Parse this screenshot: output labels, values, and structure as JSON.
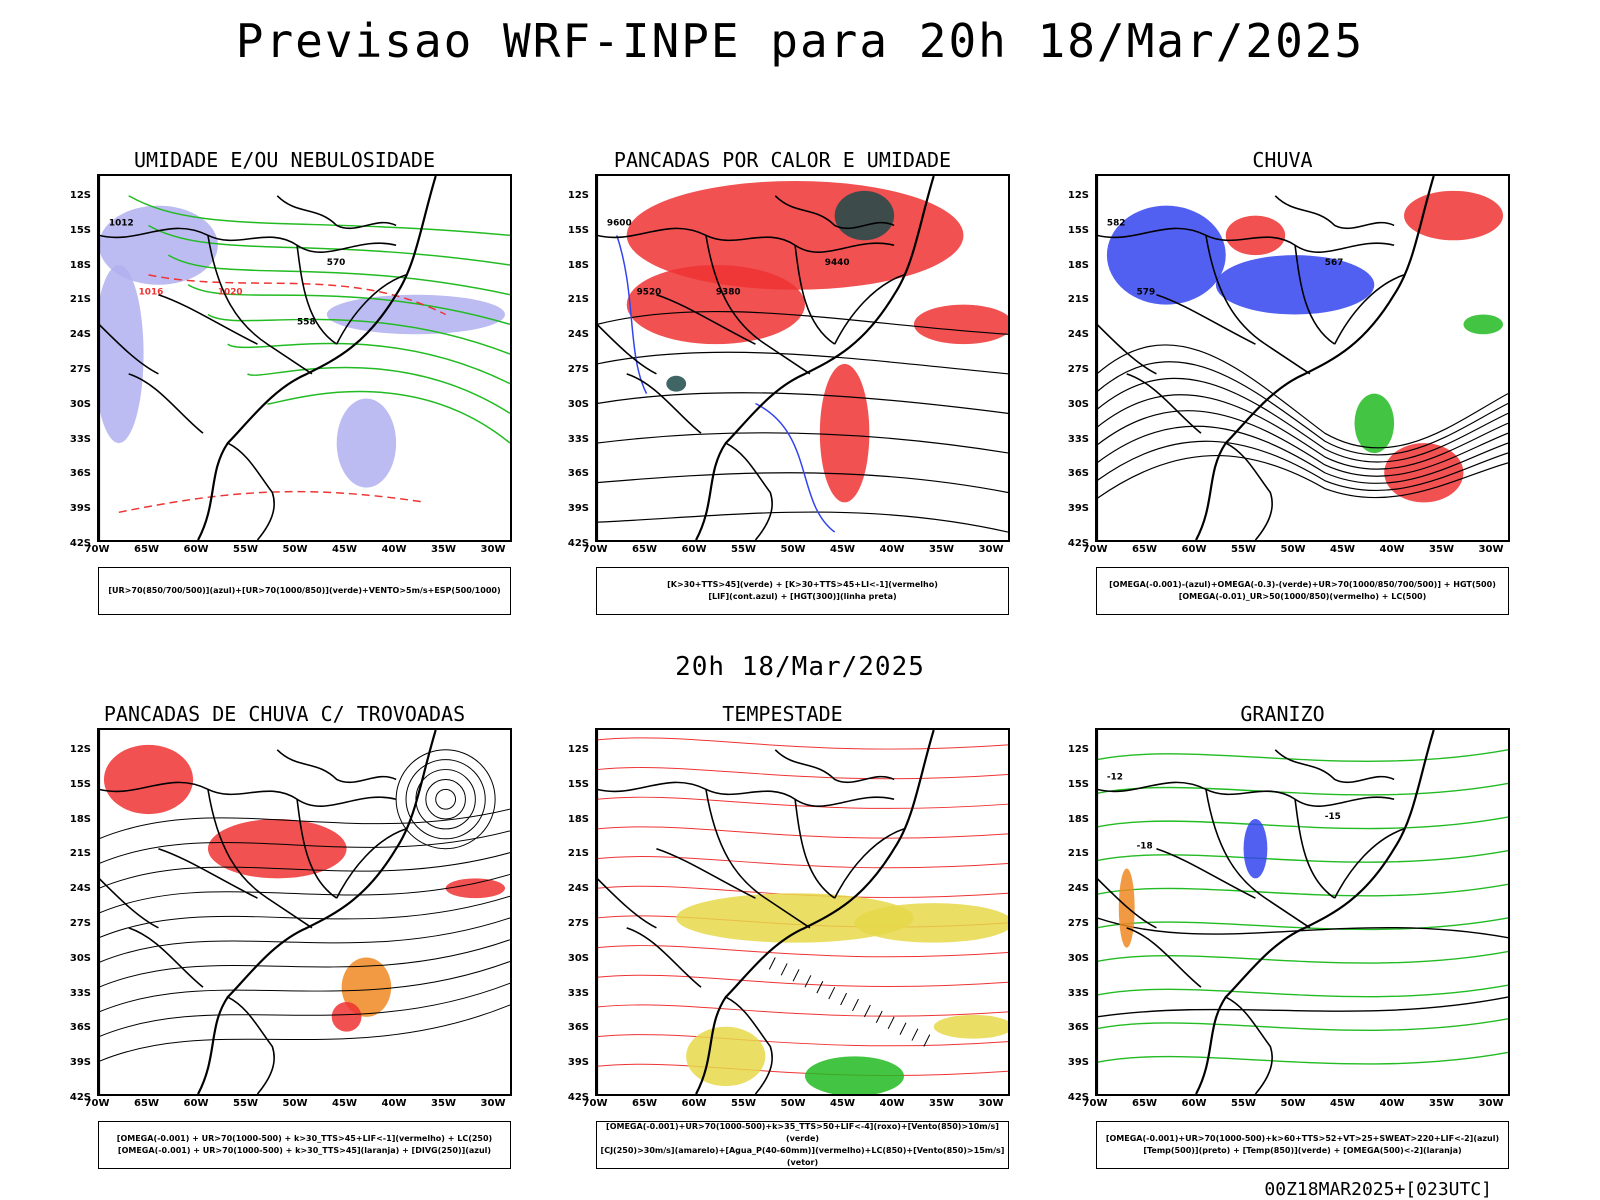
{
  "header": {
    "title": "Previsao WRF-INPE  para 20h 18/Mar/2025",
    "mid_date": "20h 18/Mar/2025"
  },
  "footer": {
    "run": "00Z18MAR2025+[023UTC]"
  },
  "axes": {
    "lat_labels": [
      "12S",
      "15S",
      "18S",
      "21S",
      "24S",
      "27S",
      "30S",
      "33S",
      "36S",
      "39S",
      "42S"
    ],
    "lon_labels": [
      "70W",
      "65W",
      "60W",
      "55W",
      "50W",
      "45W",
      "40W",
      "35W",
      "30W"
    ]
  },
  "colors": {
    "blue": "#3344ee",
    "green": "#22bb22",
    "red": "#ee3333",
    "lavender": "#b0b0f0",
    "darkteal": "#1f4a4a",
    "orange": "#ee8822",
    "yellow": "#e6d84a",
    "purple": "#8a2be2"
  },
  "panels": [
    {
      "title": "UMIDADE E/OU NEBULOSIDADE",
      "legend": [
        "[UR>70(850/700/500)](azul)+[UR>70(1000/850)](verde)+VENTO>5m/s+ESP(500/1000)"
      ],
      "annotations": [
        "1012",
        "1016",
        "570",
        "1020",
        "558"
      ]
    },
    {
      "title": "PANCADAS POR CALOR E UMIDADE",
      "legend": [
        "[K>30+TTS>45](verde) + [K>30+TTS>45+LI<-1](vermelho)",
        "[LIF](cont.azul) + [HGT(300)](linha preta)"
      ],
      "annotations": [
        "9600",
        "9520",
        "9440",
        "9380"
      ]
    },
    {
      "title": "CHUVA",
      "legend": [
        "[OMEGA(-0.001)-(azul)+OMEGA(-0.3)-(verde)+UR>70(1000/850/700/500)] + HGT(500)",
        "[OMEGA(-0.01)_UR>50(1000/850)(vermelho) + LC(500)"
      ],
      "annotations": [
        "582",
        "579",
        "567"
      ]
    },
    {
      "title": "PANCADAS DE CHUVA C/ TROVOADAS",
      "legend": [
        "[OMEGA(-0.001) + UR>70(1000-500) + k>30_TTS>45+LIF<-1](vermelho) + LC(250)",
        "[OMEGA(-0.001) + UR>70(1000-500) + k>30_TTS>45](laranja) + [DIVG(250)](azul)"
      ],
      "annotations": []
    },
    {
      "title": "TEMPESTADE",
      "legend": [
        "[OMEGA(-0.001)+UR>70(1000-500)+k>35_TTS>50+LIF<-4](roxo)+[Vento(850)>10m/s](verde)",
        "[CJ(250)>30m/s](amarelo)+[Agua_P(40-60mm)](vermelho)+LC(850)+[Vento(850)>15m/s](vetor)"
      ],
      "annotations": []
    },
    {
      "title": "GRANIZO",
      "legend": [
        "[OMEGA(-0.001)+UR>70(1000-500)+k>60+TTS>52+VT>25+SWEAT>220+LIF<-2](azul)",
        "[Temp(500)](preto) + [Temp(850)](verde) + [OMEGA(500)<-2](laranja)"
      ],
      "annotations": [
        "-12",
        "-18",
        "-15"
      ]
    }
  ]
}
